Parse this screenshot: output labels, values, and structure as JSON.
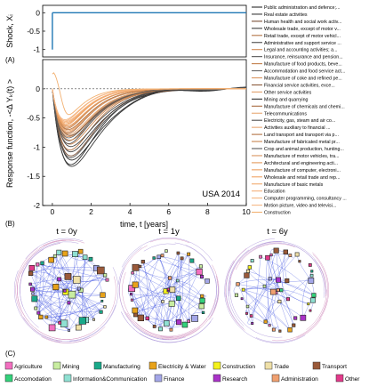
{
  "panels": {
    "a": "(A)",
    "b": "(B)",
    "c": "(C)"
  },
  "chart_data": [
    {
      "type": "line",
      "panel": "A",
      "ylabel": "Shock, Xᵢ",
      "xlim": [
        -0.5,
        10
      ],
      "ylim": [
        -1.2,
        0.2
      ],
      "yticks": [
        "0",
        "-0.5",
        "-1"
      ],
      "impulse": {
        "x": 0,
        "y": -1
      },
      "baseline": 0
    },
    {
      "type": "line",
      "panel": "B",
      "title": "USA 2014",
      "xlabel": "time, t [years]",
      "ylabel": "Response function, -<Δ Yₖ(t) >",
      "xlim": [
        -0.5,
        10
      ],
      "ylim": [
        -2,
        0.5
      ],
      "xticks": [
        "0",
        "2",
        "4",
        "6",
        "8",
        "10"
      ],
      "yticks": [
        "0",
        "-0.5",
        "-1",
        "-1.5",
        "-2"
      ],
      "series_note_colors": [
        "#1a1a1a",
        "#e59a5c"
      ],
      "series": [
        {
          "name": "Public administration and defence;...",
          "color": "#2b2b2b",
          "peak": -1.3,
          "tmin": 0.95,
          "osc": 0.0
        },
        {
          "name": "Real estate activities",
          "color": "#3a3a3a",
          "peak": -1.35,
          "tmin": 1.0,
          "osc": 0.02
        },
        {
          "name": "Human health and social work activ...",
          "color": "#7a4f35",
          "peak": -1.15,
          "tmin": 0.95,
          "osc": 0.0
        },
        {
          "name": "Wholesale trade, except of motor v...",
          "color": "#3d3d3d",
          "peak": -1.1,
          "tmin": 0.95,
          "osc": 0.02
        },
        {
          "name": "Retail trade, except of motor vehicl...",
          "color": "#b37445",
          "peak": -1.05,
          "tmin": 0.9,
          "osc": 0.0
        },
        {
          "name": "Administrative and support service ...",
          "color": "#4a4a4a",
          "peak": -1.0,
          "tmin": 0.95,
          "osc": 0.01
        },
        {
          "name": "Legal and accounting activities; a...",
          "color": "#d08a54",
          "peak": -0.95,
          "tmin": 0.9,
          "osc": 0.0
        },
        {
          "name": "Insurance, reinsurance and pension...",
          "color": "#575757",
          "peak": -0.9,
          "tmin": 0.85,
          "osc": 0.01
        },
        {
          "name": "Manufacture of food products, beve...",
          "color": "#c37f4c",
          "peak": -0.88,
          "tmin": 0.9,
          "osc": 0.0
        },
        {
          "name": "Accommodation and food service act...",
          "color": "#6a6a6a",
          "peak": -0.85,
          "tmin": 0.85,
          "osc": 0.01
        },
        {
          "name": "Manufacture of coke and refined pe...",
          "color": "#d99560",
          "peak": -0.82,
          "tmin": 0.85,
          "osc": 0.0
        },
        {
          "name": "Financial service activities, exce...",
          "color": "#8a5a3a",
          "peak": -0.8,
          "tmin": 0.9,
          "osc": 0.0
        },
        {
          "name": "Other service activities",
          "color": "#e0a06a",
          "peak": -0.78,
          "tmin": 0.85,
          "osc": 0.0
        },
        {
          "name": "Mining and quarrying",
          "color": "#2f2f2f",
          "peak": -1.25,
          "tmin": 1.0,
          "osc": 0.03
        },
        {
          "name": "Manufacture of chemicals and chemi...",
          "color": "#a86b40",
          "peak": -0.76,
          "tmin": 0.8,
          "osc": 0.0
        },
        {
          "name": "Telecommunications",
          "color": "#e8a874",
          "peak": -0.74,
          "tmin": 0.8,
          "osc": 0.0
        },
        {
          "name": "Electricity, gas, steam and air co...",
          "color": "#4f4f4f",
          "peak": -1.2,
          "tmin": 0.95,
          "osc": 0.02
        },
        {
          "name": "Activities auxiliary to financial ...",
          "color": "#e8a874",
          "peak": -0.72,
          "tmin": 0.8,
          "osc": 0.0
        },
        {
          "name": "Land transport and transport via p...",
          "color": "#b37445",
          "peak": -0.7,
          "tmin": 0.8,
          "osc": 0.0
        },
        {
          "name": "Manufacture of fabricated metal pr...",
          "color": "#c98550",
          "peak": -0.68,
          "tmin": 0.75,
          "osc": 0.0
        },
        {
          "name": "Crop and animal production, hunting...",
          "color": "#5a5a5a",
          "peak": -0.95,
          "tmin": 0.85,
          "osc": 0.01
        },
        {
          "name": "Manufacture of motor vehicles, tra...",
          "color": "#d99560",
          "peak": -0.66,
          "tmin": 0.75,
          "osc": 0.0
        },
        {
          "name": "Architectural and engineering acti...",
          "color": "#e59a5c",
          "peak": -0.64,
          "tmin": 0.75,
          "osc": 0.0
        },
        {
          "name": "Manufacture of computer, electroni...",
          "color": "#ec9f60",
          "peak": -0.62,
          "tmin": 0.7,
          "osc": 0.0
        },
        {
          "name": "Wholesale and retail trade and rep...",
          "color": "#f0a465",
          "peak": -0.6,
          "tmin": 0.7,
          "osc": 0.0
        },
        {
          "name": "Manufacture of basic metals",
          "color": "#f2ab70",
          "peak": -0.58,
          "tmin": 0.7,
          "osc": 0.0
        },
        {
          "name": "Education",
          "color": "#f4b07a",
          "peak": -0.56,
          "tmin": 0.7,
          "osc": 0.0
        },
        {
          "name": "Computer programming, consultancy ...",
          "color": "#f5b47f",
          "peak": -0.55,
          "tmin": 0.65,
          "osc": 0.0
        },
        {
          "name": "Motion picture, video and televisi...",
          "color": "#f6b885",
          "peak": -0.53,
          "tmin": 0.65,
          "osc": 0.0
        },
        {
          "name": "Construction",
          "color": "#f2b070",
          "peak": -0.5,
          "tmin": 0.6,
          "osc": 0.0,
          "overshoot": 0.42
        }
      ]
    },
    {
      "type": "network",
      "panel": "C",
      "snapshots": [
        {
          "title": "t = 0y",
          "density": 1.0
        },
        {
          "title": "t = 1y",
          "density": 0.8
        },
        {
          "title": "t = 6y",
          "density": 0.45
        }
      ],
      "legend": [
        {
          "label": "Agriculture",
          "color": "#f36fc0"
        },
        {
          "label": "Mining",
          "color": "#c8eda0"
        },
        {
          "label": "Manufacturing",
          "color": "#19a989"
        },
        {
          "label": "Electricity & Water",
          "color": "#e8a21a"
        },
        {
          "label": "Construction",
          "color": "#f4f21c"
        },
        {
          "label": "Trade",
          "color": "#efe0a8"
        },
        {
          "label": "Transport",
          "color": "#9a5a3a"
        },
        {
          "label": "Accomodation",
          "color": "#32d17a"
        },
        {
          "label": "Information&Communication",
          "color": "#8fe0d2"
        },
        {
          "label": "Finance",
          "color": "#a3a6e8"
        },
        {
          "label": "Research",
          "color": "#a932c8"
        },
        {
          "label": "Administration",
          "color": "#f0a070"
        },
        {
          "label": "Other",
          "color": "#e23a8a"
        }
      ]
    }
  ]
}
